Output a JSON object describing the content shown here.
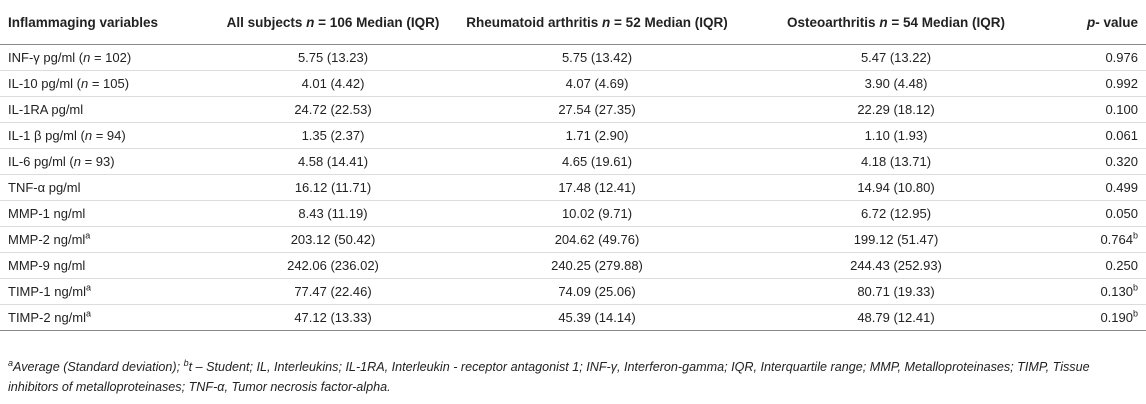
{
  "table": {
    "columns": [
      {
        "pre": "Inflammaging variables",
        "it": "",
        "post": ""
      },
      {
        "pre": "All subjects ",
        "it": "n",
        "post": " = 106 Median (IQR)"
      },
      {
        "pre": "Rheumatoid arthritis ",
        "it": "n",
        "post": " = 52 Median (IQR)"
      },
      {
        "pre": "Osteoarthritis ",
        "it": "n",
        "post": " = 54 Median (IQR)"
      },
      {
        "pre": "",
        "it": "p",
        "post": "- value"
      }
    ],
    "rows": [
      {
        "var": {
          "pre": "INF-γ pg/ml (",
          "it": "n",
          "post": " = 102)",
          "sup": ""
        },
        "all": "5.75 (13.23)",
        "ra": "5.75 (13.42)",
        "oa": "5.47 (13.22)",
        "p": {
          "value": "0.976",
          "sup": ""
        }
      },
      {
        "var": {
          "pre": "IL-10 pg/ml (",
          "it": "n",
          "post": " = 105)",
          "sup": ""
        },
        "all": "4.01 (4.42)",
        "ra": "4.07 (4.69)",
        "oa": "3.90 (4.48)",
        "p": {
          "value": "0.992",
          "sup": ""
        }
      },
      {
        "var": {
          "pre": "IL-1RA pg/ml",
          "it": "",
          "post": "",
          "sup": ""
        },
        "all": "24.72 (22.53)",
        "ra": "27.54 (27.35)",
        "oa": "22.29 (18.12)",
        "p": {
          "value": "0.100",
          "sup": ""
        }
      },
      {
        "var": {
          "pre": "IL-1 β pg/ml (",
          "it": "n",
          "post": " = 94)",
          "sup": ""
        },
        "all": "1.35 (2.37)",
        "ra": "1.71 (2.90)",
        "oa": "1.10 (1.93)",
        "p": {
          "value": "0.061",
          "sup": ""
        }
      },
      {
        "var": {
          "pre": "IL-6 pg/ml (",
          "it": "n",
          "post": " = 93)",
          "sup": ""
        },
        "all": "4.58 (14.41)",
        "ra": "4.65 (19.61)",
        "oa": "4.18 (13.71)",
        "p": {
          "value": "0.320",
          "sup": ""
        }
      },
      {
        "var": {
          "pre": "TNF-α pg/ml",
          "it": "",
          "post": "",
          "sup": ""
        },
        "all": "16.12 (11.71)",
        "ra": "17.48 (12.41)",
        "oa": "14.94 (10.80)",
        "p": {
          "value": "0.499",
          "sup": ""
        }
      },
      {
        "var": {
          "pre": "MMP-1 ng/ml",
          "it": "",
          "post": "",
          "sup": ""
        },
        "all": "8.43 (11.19)",
        "ra": "10.02 (9.71)",
        "oa": "6.72 (12.95)",
        "p": {
          "value": "0.050",
          "sup": ""
        }
      },
      {
        "var": {
          "pre": "MMP-2 ng/ml",
          "it": "",
          "post": "",
          "sup": "a"
        },
        "all": "203.12 (50.42)",
        "ra": "204.62 (49.76)",
        "oa": "199.12 (51.47)",
        "p": {
          "value": "0.764",
          "sup": "b"
        }
      },
      {
        "var": {
          "pre": "MMP-9 ng/ml",
          "it": "",
          "post": "",
          "sup": ""
        },
        "all": "242.06 (236.02)",
        "ra": "240.25 (279.88)",
        "oa": "244.43 (252.93)",
        "p": {
          "value": "0.250",
          "sup": ""
        }
      },
      {
        "var": {
          "pre": "TIMP-1 ng/ml",
          "it": "",
          "post": "",
          "sup": "a"
        },
        "all": "77.47 (22.46)",
        "ra": "74.09 (25.06)",
        "oa": "80.71 (19.33)",
        "p": {
          "value": "0.130",
          "sup": "b"
        }
      },
      {
        "var": {
          "pre": "TIMP-2 ng/ml",
          "it": "",
          "post": "",
          "sup": "a"
        },
        "all": "47.12 (13.33)",
        "ra": "45.39 (14.14)",
        "oa": "48.79 (12.41)",
        "p": {
          "value": "0.190",
          "sup": "b"
        }
      }
    ]
  },
  "footnote": {
    "sup_a": "a",
    "text_a": "Average (Standard deviation); ",
    "sup_b": "b",
    "text_b": "t – Student; IL, Interleukins; IL-1RA, Interleukin - receptor antagonist 1; INF-γ, Interferon-gamma; IQR, Interquartile range; MMP, Metalloproteinases; TIMP, Tissue inhibitors of metalloproteinases; TNF-α, Tumor necrosis factor-alpha."
  }
}
